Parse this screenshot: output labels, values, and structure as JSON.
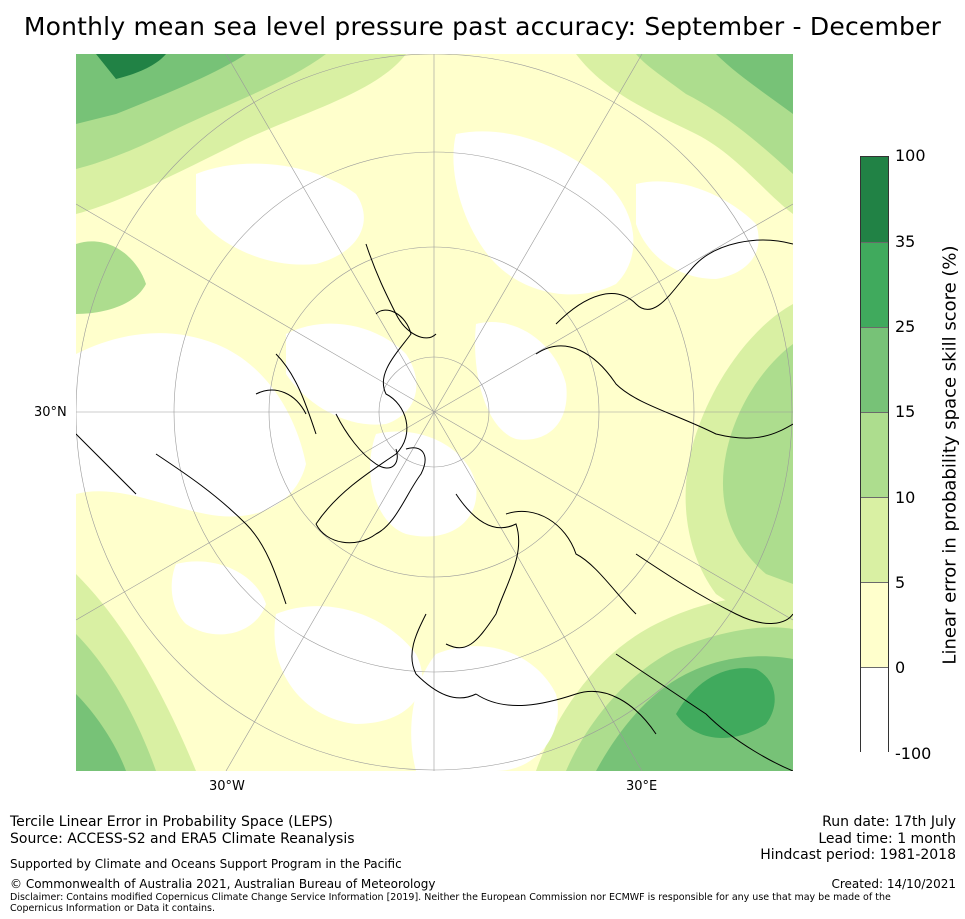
{
  "title": "Monthly mean sea level pressure past accuracy: September - December",
  "map": {
    "projection": "north-polar-stereographic",
    "lat_label": "30°N",
    "lon_labels": [
      "30°W",
      "30°E"
    ]
  },
  "colorbar": {
    "title": "Linear error in probability space skill score (%)",
    "ticks": [
      "100",
      "35",
      "25",
      "15",
      "10",
      "5",
      "0",
      "-100"
    ],
    "colors": [
      "#218245",
      "#40aa5d",
      "#77c277",
      "#addd8e",
      "#d9f0a3",
      "#ffffcc",
      "#ffffff"
    ]
  },
  "footer": {
    "method": "Tercile Linear Error in Probability Space (LEPS)",
    "source": "Source: ACCESS-S2 and ERA5 Climate Reanalysis",
    "support": "Supported by Climate and Oceans Support Program in the Pacific",
    "copyright": "© Commonwealth of Australia 2021, Australian Bureau of Meteorology",
    "disclaimer": "Disclaimer: Contains modified Copernicus Climate Change Service Information [2019]. Neither the European Commission nor ECMWF is responsible for any use that may be made of the Copernicus Information or Data it contains.",
    "run_date": "Run date: 17th July",
    "lead_time": "Lead time: 1 month",
    "hindcast": "Hindcast period: 1981-2018",
    "created": "Created: 14/10/2021"
  }
}
